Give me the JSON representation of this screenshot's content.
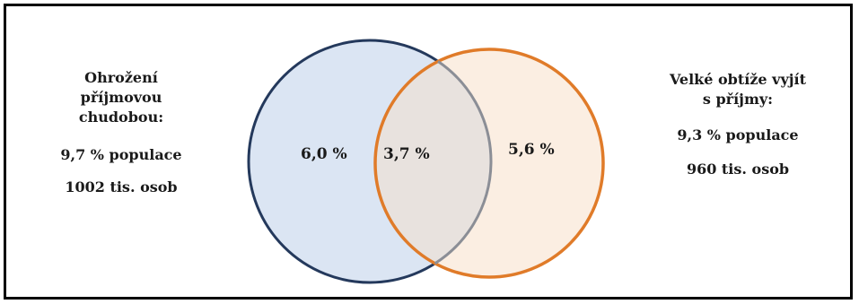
{
  "left_group": {
    "title_lines": [
      "Ohrožení",
      "příjmovou",
      "chudobou:"
    ],
    "population_share": "9,7 % populace",
    "persons": "1002 tis. osob"
  },
  "right_group": {
    "title_lines": [
      "Velké obtíže vyjít",
      "s příjmy:"
    ],
    "population_share": "9,3 % populace",
    "persons": "960 tis. osob"
  },
  "venn": {
    "left_only": "6,0 %",
    "overlap": "3,7 %",
    "right_only": "5,6 %"
  },
  "colors": {
    "left_circle_stroke": "#24395c",
    "left_circle_fill": "#dbe5f3",
    "right_circle_stroke": "#e07b29",
    "right_circle_fill": "#fbeee2",
    "overlap_fill": "#e8e2de",
    "frame": "#000000"
  }
}
